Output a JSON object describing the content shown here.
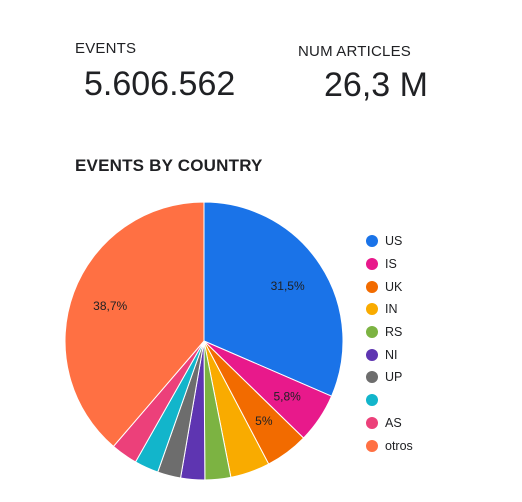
{
  "kpis": {
    "events": {
      "label": "EVENTS",
      "value": "5.606.562"
    },
    "articles": {
      "label": "NUM ARTICLES",
      "value": "26,3 M"
    }
  },
  "chart_data": {
    "type": "pie",
    "title": "EVENTS BY COUNTRY",
    "legend_position": "right",
    "slices": [
      {
        "label": "US",
        "value": 31.5,
        "display": "31,5%",
        "color": "#1a73e8"
      },
      {
        "label": "IS",
        "value": 5.8,
        "display": "5,8%",
        "color": "#e8198b"
      },
      {
        "label": "UK",
        "value": 5.0,
        "display": "5%",
        "color": "#f26b00"
      },
      {
        "label": "IN",
        "value": 4.6,
        "display": "",
        "color": "#f9ab00"
      },
      {
        "label": "RS",
        "value": 3.0,
        "display": "",
        "color": "#7cb342"
      },
      {
        "label": "NI",
        "value": 2.8,
        "display": "",
        "color": "#5e35b1"
      },
      {
        "label": "UP",
        "value": 2.7,
        "display": "",
        "color": "#6d6d6d"
      },
      {
        "label": "",
        "value": 2.8,
        "display": "",
        "color": "#12b5cb"
      },
      {
        "label": "AS",
        "value": 3.1,
        "display": "",
        "color": "#ec407a"
      },
      {
        "label": "otros",
        "value": 38.7,
        "display": "38,7%",
        "color": "#ff7043"
      }
    ]
  }
}
